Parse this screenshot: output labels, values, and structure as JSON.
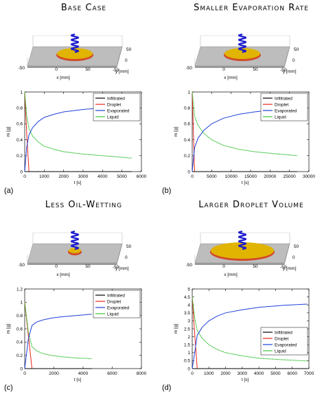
{
  "panels": [
    {
      "title": "Base Case",
      "label": "(a)",
      "domain": {
        "ticks": [
          "-50",
          "0",
          "50",
          "0",
          "50",
          "-50"
        ],
        "xlabel": "x [mm]",
        "ylabel": "y [mm]"
      },
      "droplet_size": "small"
    },
    {
      "title": "Smaller Evaporation Rate",
      "label": "(b)",
      "domain": {
        "ticks": [
          "-50",
          "0",
          "50",
          "0",
          "50",
          "-50"
        ],
        "xlabel": "x [mm]",
        "ylabel": "y [mm]"
      },
      "droplet_size": "small"
    },
    {
      "title": "Less Oil-Wetting",
      "label": "(c)",
      "domain": {
        "ticks": [
          "-50",
          "0",
          "50",
          "0",
          "50",
          "-50"
        ],
        "xlabel": "x [mm]",
        "ylabel": "y [mm]"
      },
      "droplet_size": "tiny"
    },
    {
      "title": "Larger Droplet Volume",
      "label": "(d)",
      "domain": {
        "ticks": [
          "-50",
          "0",
          "50",
          "0",
          "50",
          "-50"
        ],
        "xlabel": "x [mm]",
        "ylabel": "y [mm]"
      },
      "droplet_size": "large"
    }
  ],
  "colors": {
    "infiltrated": "#000000",
    "droplet": "#e8241c",
    "evaporated": "#1f3fd9",
    "liquid": "#3cc43c",
    "plate": "#bdbdbd",
    "droplet_fill": "#e0b400"
  },
  "chart_data": [
    {
      "type": "line",
      "xlabel": "t [s]",
      "ylabel": "m [g]",
      "xlim": [
        0,
        6000
      ],
      "ylim": [
        0,
        1
      ],
      "xticks": [
        0,
        1000,
        2000,
        3000,
        4000,
        5000,
        6000
      ],
      "yticks": [
        0,
        0.2,
        0.4,
        0.6,
        0.8,
        1
      ],
      "ytick_labels": [
        "0",
        "0.2",
        "0.4",
        "0.6",
        "0.8",
        "1"
      ],
      "legend": "top-right",
      "series": [
        {
          "name": "Infiltrated",
          "key": "infiltrated",
          "x": [
            0,
            220,
            5500
          ],
          "y": [
            0,
            0,
            0
          ]
        },
        {
          "name": "Droplet",
          "key": "droplet",
          "x": [
            0,
            100,
            220,
            5500
          ],
          "y": [
            1,
            0.5,
            0,
            0
          ]
        },
        {
          "name": "Evaporated",
          "key": "evaporated",
          "x": [
            0,
            100,
            220,
            400,
            700,
            1000,
            1500,
            2000,
            3000,
            4000,
            5500
          ],
          "y": [
            0,
            0.3,
            0.46,
            0.55,
            0.63,
            0.68,
            0.72,
            0.75,
            0.78,
            0.8,
            0.83
          ]
        },
        {
          "name": "Liquid",
          "key": "liquid",
          "x": [
            0,
            100,
            220,
            400,
            700,
            1000,
            1500,
            2000,
            3000,
            4000,
            5500
          ],
          "y": [
            1,
            0.7,
            0.54,
            0.45,
            0.37,
            0.32,
            0.28,
            0.25,
            0.22,
            0.2,
            0.17
          ]
        }
      ]
    },
    {
      "type": "line",
      "xlabel": "t [s]",
      "ylabel": "m [g]",
      "xlim": [
        0,
        30000
      ],
      "ylim": [
        0,
        1
      ],
      "xticks": [
        0,
        5000,
        10000,
        15000,
        20000,
        25000,
        30000
      ],
      "yticks": [
        0,
        0.2,
        0.4,
        0.6,
        0.8,
        1
      ],
      "ytick_labels": [
        "0",
        "0.2",
        "0.4",
        "0.6",
        "0.8",
        "1"
      ],
      "legend": "top-right",
      "series": [
        {
          "name": "Infiltrated",
          "key": "infiltrated",
          "x": [
            0,
            600,
            27000
          ],
          "y": [
            0,
            0,
            0
          ]
        },
        {
          "name": "Droplet",
          "key": "droplet",
          "x": [
            0,
            300,
            600,
            27000
          ],
          "y": [
            1,
            0.5,
            0,
            0
          ]
        },
        {
          "name": "Evaporated",
          "key": "evaporated",
          "x": [
            0,
            300,
            600,
            1500,
            3000,
            5000,
            8000,
            12000,
            16000,
            20000,
            27000
          ],
          "y": [
            0,
            0.15,
            0.3,
            0.42,
            0.52,
            0.6,
            0.67,
            0.72,
            0.75,
            0.77,
            0.8
          ]
        },
        {
          "name": "Liquid",
          "key": "liquid",
          "x": [
            0,
            300,
            600,
            1500,
            3000,
            5000,
            8000,
            12000,
            16000,
            20000,
            27000
          ],
          "y": [
            1,
            0.85,
            0.7,
            0.58,
            0.48,
            0.4,
            0.33,
            0.28,
            0.25,
            0.23,
            0.2
          ]
        }
      ]
    },
    {
      "type": "line",
      "xlabel": "t [s]",
      "ylabel": "m [g]",
      "xlim": [
        0,
        8000
      ],
      "ylim": [
        0,
        1.2
      ],
      "xticks": [
        0,
        2000,
        4000,
        6000,
        8000
      ],
      "yticks": [
        0,
        0.2,
        0.4,
        0.6,
        0.8,
        1,
        1.2
      ],
      "ytick_labels": [
        "0",
        "0.2",
        "0.4",
        "0.6",
        "0.8",
        "1",
        "1.2"
      ],
      "legend": "top-right",
      "series": [
        {
          "name": "Infiltrated",
          "key": "infiltrated",
          "x": [
            0,
            500,
            4600
          ],
          "y": [
            0,
            0,
            0
          ]
        },
        {
          "name": "Droplet",
          "key": "droplet",
          "x": [
            0,
            250,
            500,
            4600
          ],
          "y": [
            1,
            0.5,
            0,
            0
          ]
        },
        {
          "name": "Evaporated",
          "key": "evaporated",
          "x": [
            0,
            250,
            500,
            800,
            1200,
            1800,
            2500,
            3500,
            4600
          ],
          "y": [
            0,
            0.45,
            0.65,
            0.7,
            0.73,
            0.76,
            0.78,
            0.8,
            0.82
          ]
        },
        {
          "name": "Liquid",
          "key": "liquid",
          "x": [
            0,
            250,
            500,
            800,
            1200,
            1800,
            2500,
            3500,
            4600
          ],
          "y": [
            1,
            0.55,
            0.33,
            0.27,
            0.23,
            0.2,
            0.18,
            0.16,
            0.15
          ]
        }
      ]
    },
    {
      "type": "line",
      "xlabel": "t [s]",
      "ylabel": "m [g]",
      "xlim": [
        0,
        7000
      ],
      "ylim": [
        0,
        5
      ],
      "xticks": [
        0,
        1000,
        2000,
        3000,
        4000,
        5000,
        6000,
        7000
      ],
      "yticks": [
        0,
        0.5,
        1,
        1.5,
        2,
        2.5,
        3,
        3.5,
        4,
        4.5,
        5
      ],
      "ytick_labels": [
        "0",
        "0.5",
        "1",
        "1.5",
        "2",
        "2.5",
        "3",
        "3.5",
        "4",
        "4.5",
        "5"
      ],
      "legend": "lower-right",
      "series": [
        {
          "name": "Infiltrated",
          "key": "infiltrated",
          "x": [
            0,
            300,
            6900
          ],
          "y": [
            0,
            0,
            0
          ]
        },
        {
          "name": "Droplet",
          "key": "droplet",
          "x": [
            0,
            150,
            300,
            6900
          ],
          "y": [
            4.5,
            2.2,
            0,
            0
          ]
        },
        {
          "name": "Evaporated",
          "key": "evaporated",
          "x": [
            0,
            150,
            300,
            600,
            1000,
            1500,
            2000,
            3000,
            4000,
            5500,
            6900
          ],
          "y": [
            0,
            1,
            2.1,
            2.6,
            3,
            3.3,
            3.5,
            3.7,
            3.85,
            3.98,
            4.05
          ]
        },
        {
          "name": "Liquid",
          "key": "liquid",
          "x": [
            0,
            150,
            300,
            600,
            1000,
            1500,
            2000,
            3000,
            4000,
            5500,
            6900
          ],
          "y": [
            4.5,
            3.2,
            2.4,
            1.9,
            1.5,
            1.2,
            1.0,
            0.8,
            0.65,
            0.55,
            0.48
          ]
        }
      ]
    }
  ]
}
